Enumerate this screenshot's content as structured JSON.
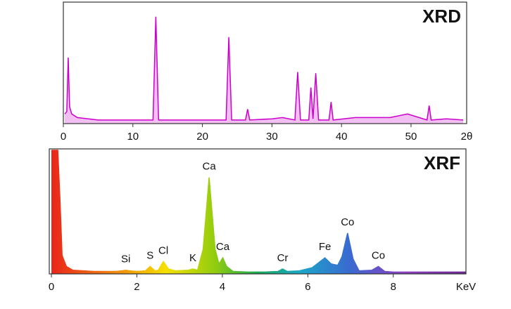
{
  "chart_data": [
    {
      "type": "line",
      "title": "XRD",
      "xlabel": "2θ",
      "xlim": [
        0,
        58
      ],
      "ylim": [
        0,
        100
      ],
      "xticks": [
        0,
        10,
        20,
        30,
        40,
        50
      ],
      "series": [
        {
          "color": "#cc00cc",
          "x": [
            0.2,
            0.5,
            0.7,
            0.9,
            1.2,
            2,
            5,
            10,
            12.9,
            13.3,
            13.7,
            16,
            20,
            23.4,
            23.8,
            24.2,
            26.2,
            26.5,
            26.8,
            30,
            31.5,
            33.3,
            33.7,
            34.1,
            35.3,
            35.6,
            35.9,
            36.3,
            36.7,
            38.2,
            38.5,
            38.8,
            42,
            47,
            49.5,
            52.3,
            52.6,
            52.9,
            55,
            57.5
          ],
          "values": [
            8,
            10,
            55,
            14,
            8,
            5,
            3,
            3,
            3,
            89,
            3,
            3,
            3,
            3,
            72,
            3,
            3,
            12,
            3,
            4,
            5,
            3,
            43,
            3,
            3,
            30,
            4,
            42,
            3,
            3,
            18,
            3,
            5,
            5,
            8,
            3,
            15,
            3,
            4,
            3
          ]
        }
      ]
    },
    {
      "type": "area",
      "title": "XRF",
      "xlabel": "KeV",
      "xlim": [
        -0.05,
        9.7
      ],
      "ylim": [
        0,
        100
      ],
      "xticks": [
        0,
        2,
        4,
        6,
        8
      ],
      "series": [
        {
          "x": [
            0,
            0.05,
            0.1,
            0.15,
            0.2,
            0.25,
            0.35,
            0.5,
            1.0,
            1.5,
            1.65,
            1.74,
            1.83,
            2.0,
            2.2,
            2.31,
            2.42,
            2.5,
            2.62,
            2.74,
            2.9,
            3.2,
            3.31,
            3.42,
            3.55,
            3.69,
            3.83,
            3.92,
            4.01,
            4.1,
            4.25,
            4.6,
            5.0,
            5.3,
            5.41,
            5.52,
            5.8,
            6.1,
            6.25,
            6.4,
            6.55,
            6.7,
            6.8,
            6.93,
            7.06,
            7.2,
            7.5,
            7.65,
            7.8,
            8.0,
            9.0,
            9.7
          ],
          "values": [
            100,
            100,
            100,
            100,
            60,
            15,
            6,
            3,
            2,
            2,
            2.5,
            3,
            2.5,
            2,
            2.5,
            6,
            2.5,
            3,
            10,
            4,
            2.5,
            3,
            4,
            3,
            20,
            78,
            20,
            8,
            13,
            6,
            2,
            1.5,
            1.5,
            2,
            4,
            2,
            2.5,
            5,
            9,
            13,
            8,
            7,
            14,
            33,
            12,
            2.5,
            3,
            6,
            2,
            1.5,
            1.5,
            1.5
          ]
        }
      ],
      "annotations": [
        {
          "text": "Si",
          "x": 1.74
        },
        {
          "text": "S",
          "x": 2.31
        },
        {
          "text": "Cl",
          "x": 2.62
        },
        {
          "text": "K",
          "x": 3.31
        },
        {
          "text": "Ca",
          "x": 3.69
        },
        {
          "text": "Ca",
          "x": 4.01
        },
        {
          "text": "Cr",
          "x": 5.41
        },
        {
          "text": "Fe",
          "x": 6.4
        },
        {
          "text": "Co",
          "x": 6.93
        },
        {
          "text": "Co",
          "x": 7.65
        }
      ]
    }
  ]
}
